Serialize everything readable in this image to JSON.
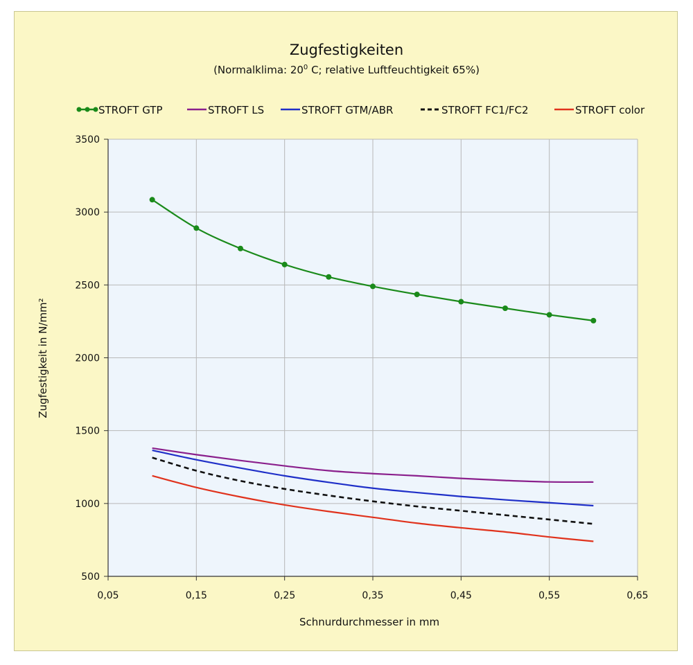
{
  "chart_data": {
    "type": "line",
    "title": "Zugfestigkeiten",
    "subtitle": {
      "before": "(Normalklima: 20",
      "sup": "0",
      "after": " C;  relative Luftfeuchtigkeit 65%)"
    },
    "xlabel": "Schnurdurchmesser in mm",
    "ylabel": "Zugfestigkeit in N/mm²",
    "xlim": [
      0.05,
      0.65
    ],
    "ylim": [
      500,
      3500
    ],
    "x_ticks": [
      "0,05",
      "0,15",
      "0,25",
      "0,35",
      "0,45",
      "0,55",
      "0,65"
    ],
    "y_ticks": [
      "500",
      "1000",
      "1500",
      "2000",
      "2500",
      "3000",
      "3500"
    ],
    "grid": true,
    "legend_position": "top",
    "series": [
      {
        "name": "STROFT GTP",
        "color": "#1a8a1a",
        "dash": "solid",
        "markers": true,
        "x": [
          0.1,
          0.15,
          0.2,
          0.25,
          0.3,
          0.35,
          0.4,
          0.45,
          0.5,
          0.55,
          0.6
        ],
        "y": [
          3085,
          2890,
          2750,
          2640,
          2555,
          2490,
          2435,
          2385,
          2340,
          2295,
          2255
        ]
      },
      {
        "name": "STROFT LS",
        "color": "#8a1f8c",
        "dash": "solid",
        "markers": false,
        "x": [
          0.1,
          0.15,
          0.2,
          0.25,
          0.3,
          0.35,
          0.4,
          0.45,
          0.5,
          0.55,
          0.6
        ],
        "y": [
          1380,
          1335,
          1295,
          1258,
          1225,
          1205,
          1190,
          1172,
          1158,
          1148,
          1147
        ]
      },
      {
        "name": "STROFT GTM/ABR",
        "color": "#1f2fc8",
        "dash": "solid",
        "markers": false,
        "x": [
          0.1,
          0.15,
          0.2,
          0.25,
          0.3,
          0.35,
          0.4,
          0.45,
          0.5,
          0.55,
          0.6
        ],
        "y": [
          1365,
          1300,
          1243,
          1190,
          1145,
          1105,
          1075,
          1048,
          1025,
          1005,
          985
        ]
      },
      {
        "name": "STROFT FC1/FC2",
        "color": "#111111",
        "dash": "dashed",
        "markers": false,
        "x": [
          0.1,
          0.15,
          0.2,
          0.25,
          0.3,
          0.35,
          0.4,
          0.45,
          0.5,
          0.55,
          0.6
        ],
        "y": [
          1315,
          1225,
          1155,
          1100,
          1055,
          1015,
          980,
          950,
          920,
          890,
          860
        ]
      },
      {
        "name": "STROFT color",
        "color": "#e0321c",
        "dash": "solid",
        "markers": false,
        "x": [
          0.1,
          0.15,
          0.2,
          0.25,
          0.3,
          0.35,
          0.4,
          0.45,
          0.5,
          0.55,
          0.6
        ],
        "y": [
          1190,
          1110,
          1045,
          990,
          945,
          905,
          865,
          833,
          805,
          770,
          740
        ]
      }
    ],
    "colors": {
      "plot_background": "#eef5fc",
      "frame_background": "#fbf7c6",
      "grid": "#b8b8b8"
    }
  }
}
